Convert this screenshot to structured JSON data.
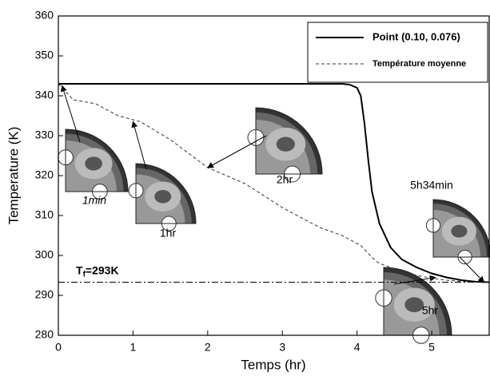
{
  "chart_data": {
    "type": "line",
    "x_label": "Temps (hr)",
    "y_label": "Temperature (K)",
    "xlim": [
      0,
      5.77
    ],
    "ylim": [
      280,
      360
    ],
    "xticks": [
      0,
      1,
      2,
      3,
      4,
      5
    ],
    "yticks": [
      280,
      290,
      300,
      310,
      320,
      330,
      340,
      350,
      360
    ],
    "x": [
      0,
      0.2,
      0.5,
      0.8,
      1.1,
      1.5,
      2,
      2.5,
      3,
      3.5,
      3.8,
      3.9,
      4,
      4.05,
      4.1,
      4.15,
      4.2,
      4.3,
      4.45,
      4.6,
      4.8,
      5,
      5.2,
      5.4,
      5.6,
      5.77
    ],
    "series": [
      {
        "name": "Point (0.10, 0.076)",
        "color": "#000000",
        "style": "solid",
        "values": [
          343,
          343,
          343,
          343,
          343,
          343,
          343,
          343,
          343,
          343,
          343,
          342.8,
          342,
          340,
          333,
          324,
          316,
          308,
          302,
          299,
          297,
          295.5,
          294.5,
          293.8,
          293.4,
          293.3
        ]
      },
      {
        "name": "Température moyenne",
        "color": "#333333",
        "style": "dashed",
        "values": [
          343,
          339,
          338,
          335,
          333.5,
          329,
          322,
          318,
          312,
          307,
          305,
          304,
          303,
          302.5,
          301.5,
          300.5,
          299.5,
          298,
          297,
          296,
          295,
          294.3,
          293.8,
          293.5,
          293.3,
          293.2
        ]
      }
    ],
    "reference_line": {
      "value": 293.3,
      "label": "T",
      "label_sub": "f",
      "label_rest": "=293K"
    },
    "legend": "top-right",
    "insets": [
      {
        "label": "1min",
        "x": 0.05,
        "y": 342.5
      },
      {
        "label": "1hr",
        "x": 1.0,
        "y": 333.5
      },
      {
        "label": "2hr",
        "x": 2.0,
        "y": 322
      },
      {
        "label": "5hr",
        "x": 5.05,
        "y": 294.5
      },
      {
        "label": "5h34min",
        "x": 5.7,
        "y": 293.3
      }
    ]
  }
}
